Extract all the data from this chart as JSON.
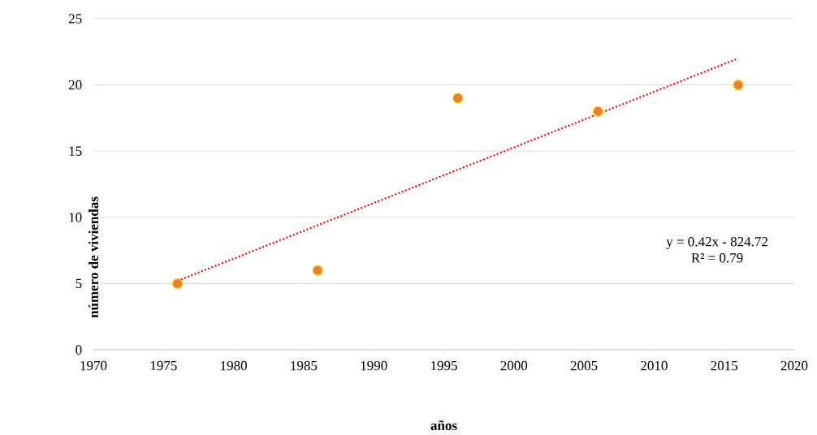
{
  "chart_data": {
    "type": "scatter",
    "xlabel": "años",
    "ylabel": "número de viviendas",
    "xlim": [
      1970,
      2020
    ],
    "xticks": [
      1970,
      1975,
      1980,
      1985,
      1990,
      1995,
      2000,
      2005,
      2010,
      2015,
      2020
    ],
    "ylim": [
      0,
      25
    ],
    "yticks": [
      0,
      5,
      10,
      15,
      20,
      25
    ],
    "grid": "y",
    "marker": "circle",
    "series": [
      {
        "color": "#ed7d31",
        "x": [
          1976,
          1986,
          1996,
          2006,
          2016
        ],
        "values": [
          5,
          6,
          19,
          18,
          20
        ]
      },
      {
        "type": "line",
        "color": "#ff0000",
        "line_style": "dotted",
        "marker": "none",
        "x": [
          1976,
          2016
        ],
        "values": [
          5.2,
          22.0
        ]
      }
    ],
    "annotations": [
      "y = 0.42x - 824.72",
      "R² = 0.79"
    ]
  }
}
